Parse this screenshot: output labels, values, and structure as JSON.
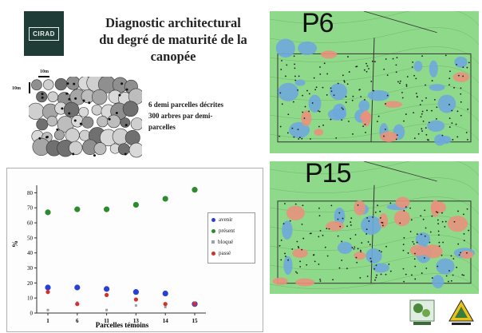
{
  "logo": {
    "text": "CIRAD"
  },
  "title": {
    "line1": "Diagnostic architectural",
    "line2": "du degré de maturité de la",
    "line3": "canopée"
  },
  "scale": {
    "horizontal": "10m",
    "vertical": "10m"
  },
  "description": {
    "line1": "6 demi parcelles décrites",
    "line2": "300 arbres par demi-",
    "line3": "parcelles"
  },
  "maps": [
    {
      "label": "P6"
    },
    {
      "label": "P15"
    }
  ],
  "colors": {
    "avenir": "#2a3fd6",
    "present": "#2e8a2e",
    "bloque": "#9aa0ae",
    "passe": "#d4302a",
    "map_bg": "#8fd98a",
    "map_blue": "#6fa8dc",
    "map_red": "#e8917c"
  },
  "chart_data": {
    "type": "scatter",
    "title": "",
    "xlabel": "Parcelles témoins",
    "ylabel": "%",
    "categories": [
      "1",
      "6",
      "11",
      "13",
      "14",
      "15"
    ],
    "ylim": [
      0,
      85
    ],
    "yticks": [
      0,
      10,
      20,
      30,
      40,
      50,
      60,
      70,
      80
    ],
    "legend_position": "right",
    "series": [
      {
        "name": "avenir",
        "values": [
          17,
          17,
          16,
          14,
          13,
          6
        ]
      },
      {
        "name": "présent",
        "values": [
          67,
          69,
          69,
          72,
          76,
          82
        ]
      },
      {
        "name": "bloqué",
        "values": [
          2,
          7,
          2,
          5,
          4,
          7
        ]
      },
      {
        "name": "passé",
        "values": [
          14,
          6,
          12,
          9,
          6,
          6
        ]
      }
    ]
  }
}
